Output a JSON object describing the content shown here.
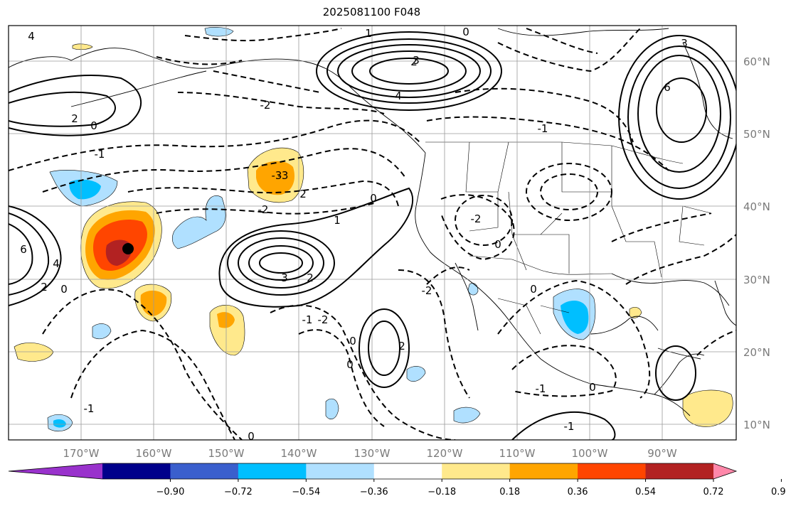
{
  "title": "2025081100 F048",
  "lat_labels": [
    "60°N",
    "50°N",
    "40°N",
    "30°N",
    "20°N",
    "10°N"
  ],
  "lon_labels": [
    "170°W",
    "160°W",
    "150°W",
    "140°W",
    "130°W",
    "120°W",
    "110°W",
    "100°W",
    "90°W"
  ],
  "colorbar": {
    "ticks": [
      "−0.90",
      "−0.72",
      "−0.54",
      "−0.36",
      "−0.18",
      "0.18",
      "0.36",
      "0.54",
      "0.72",
      "0.90"
    ],
    "colors": [
      "#9932cc",
      "#00008b",
      "#3a5fcd",
      "#00bfff",
      "#b0e0ff",
      "#ffffff",
      "#ffe98c",
      "#ffa500",
      "#ff4500",
      "#b22222",
      "#ff88aa"
    ],
    "extend": "both"
  },
  "contour_labels": [
    {
      "text": "4"
    },
    {
      "text": "2"
    },
    {
      "text": "0"
    },
    {
      "text": "-1"
    },
    {
      "text": "-2"
    },
    {
      "text": "-3"
    },
    {
      "text": "0"
    },
    {
      "text": "2"
    },
    {
      "text": "3"
    },
    {
      "text": "4"
    },
    {
      "text": "1"
    },
    {
      "text": "-1"
    },
    {
      "text": "6"
    },
    {
      "text": "3"
    },
    {
      "text": "-3"
    },
    {
      "text": "2"
    },
    {
      "text": "-2"
    },
    {
      "text": "0"
    },
    {
      "text": "1"
    },
    {
      "text": "3"
    },
    {
      "text": "6"
    },
    {
      "text": "4"
    },
    {
      "text": "2"
    },
    {
      "text": "0"
    },
    {
      "text": "-2"
    },
    {
      "text": "2"
    },
    {
      "text": "-1"
    },
    {
      "text": "0"
    },
    {
      "text": "-2"
    },
    {
      "text": "0"
    },
    {
      "text": "-2"
    },
    {
      "text": "0"
    },
    {
      "text": "2"
    },
    {
      "text": "-1"
    },
    {
      "text": "0"
    },
    {
      "text": "-1"
    },
    {
      "text": "0"
    },
    {
      "text": "-1"
    },
    {
      "text": "0"
    }
  ],
  "marker": {
    "type": "storm-center-dot",
    "color": "#000000"
  }
}
